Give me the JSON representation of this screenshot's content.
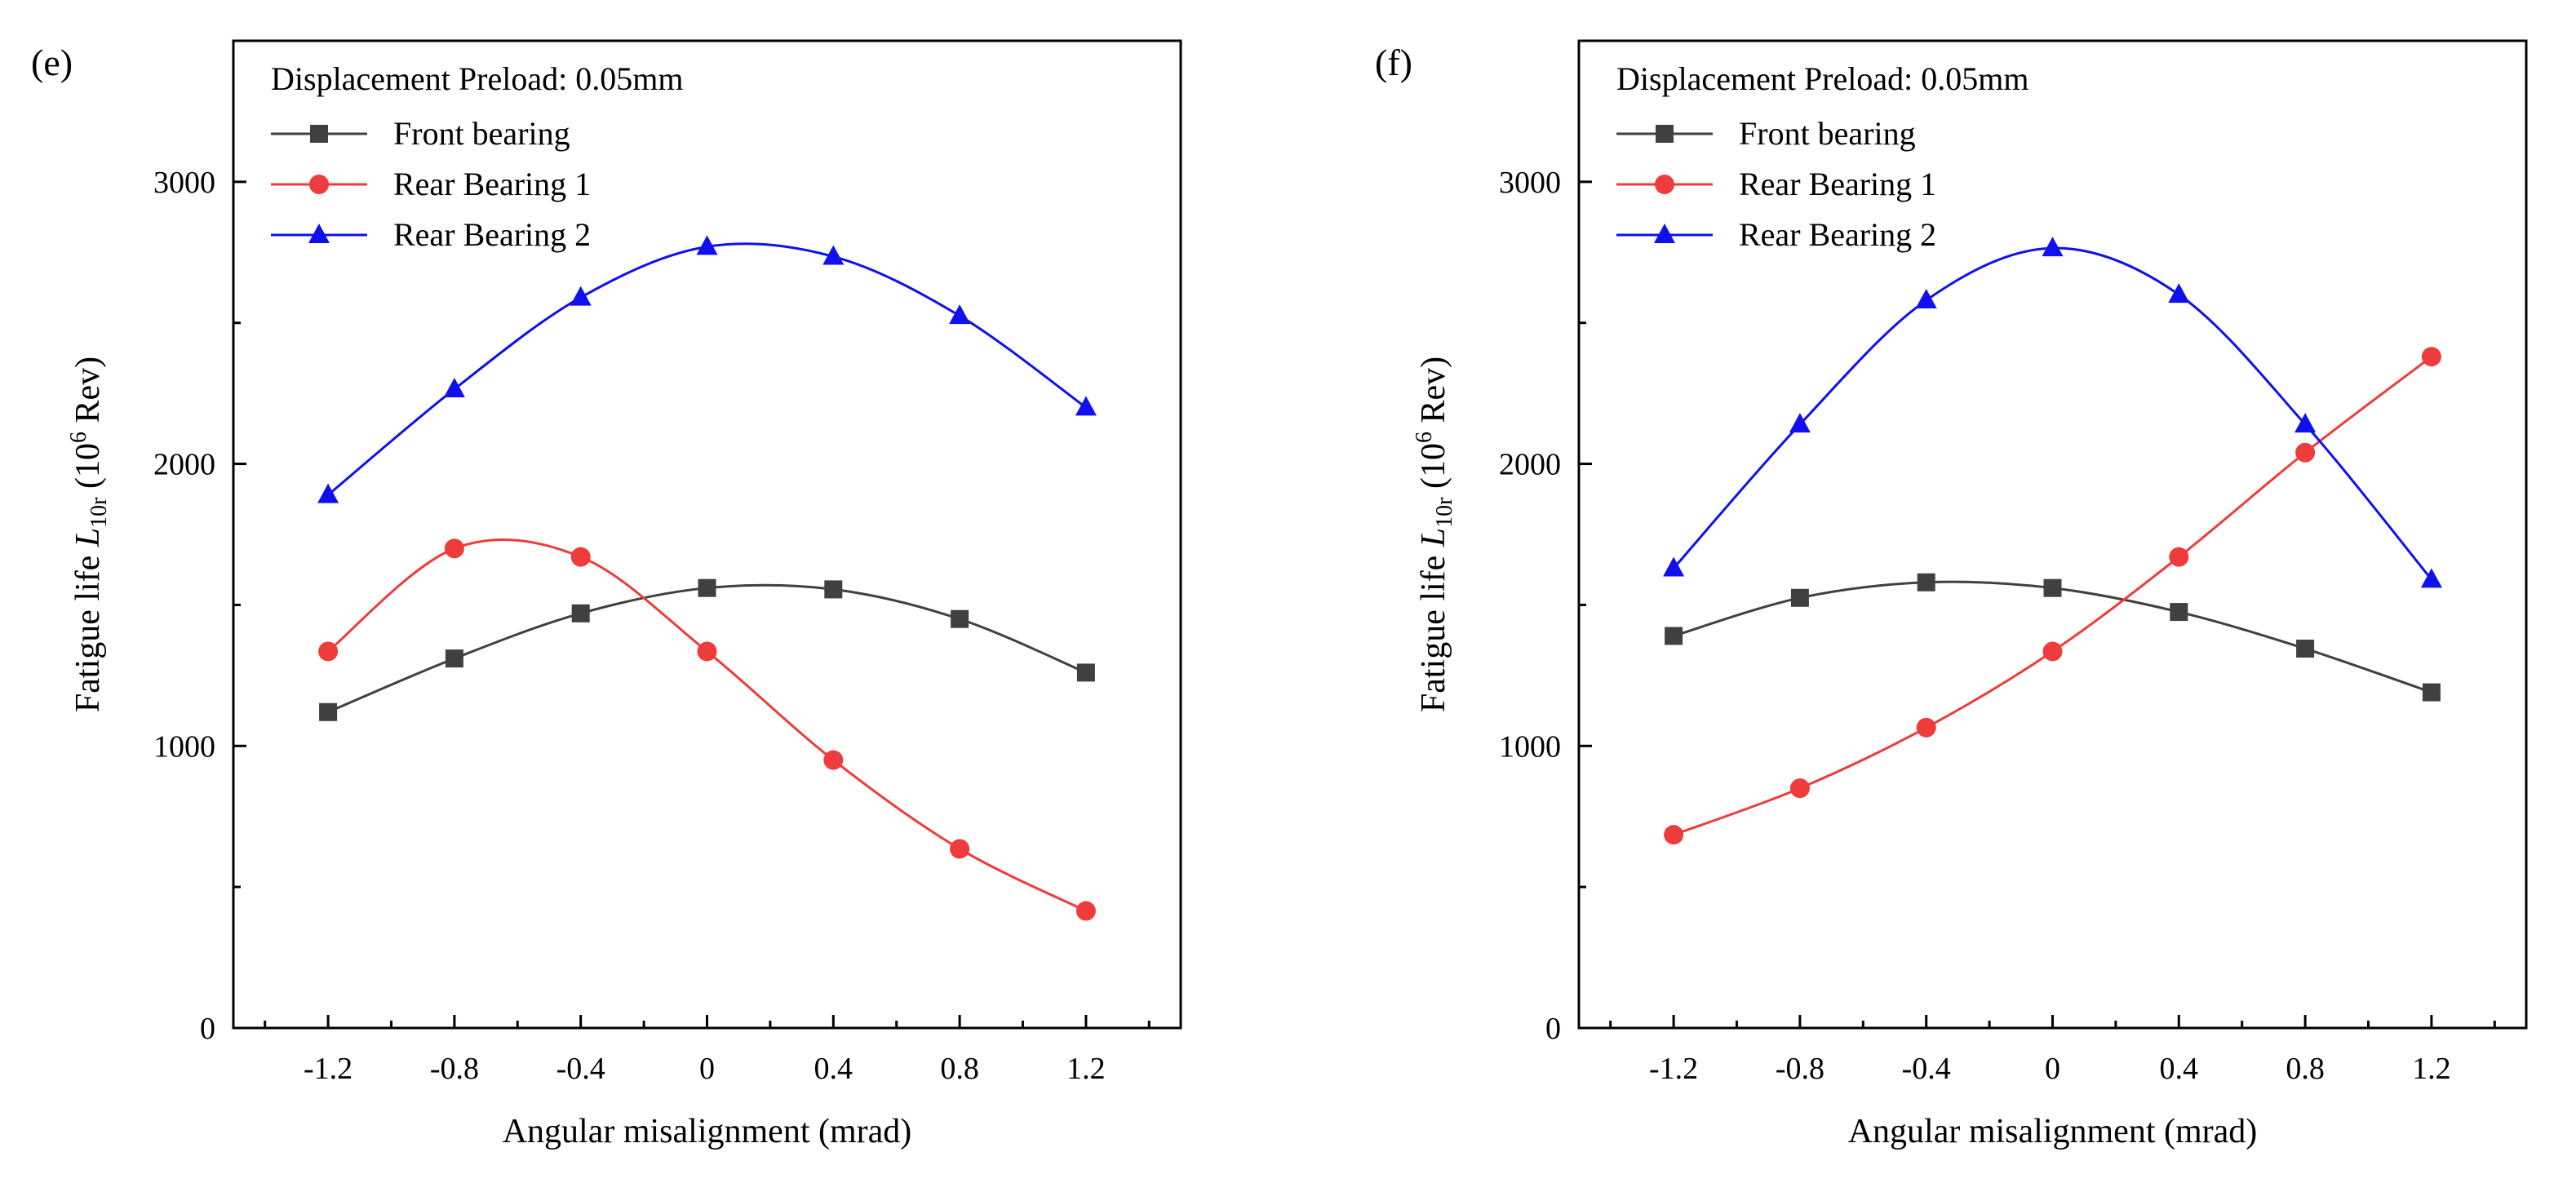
{
  "chart_data": [
    {
      "type": "line",
      "panel_label": "(e)",
      "legend_title": "Displacement Preload: 0.05mm",
      "x": [
        -1.2,
        -0.8,
        -0.4,
        0,
        0.4,
        0.8,
        1.2
      ],
      "x_tick_labels": [
        "-1.2",
        "-0.8",
        "-0.4",
        "0",
        "0.4",
        "0.8",
        "1.2"
      ],
      "y_ticks": [
        0,
        1000,
        2000,
        3000
      ],
      "xlim": [
        -1.5,
        1.5
      ],
      "ylim": [
        0,
        3500
      ],
      "xlabel": "Angular misalignment (mrad)",
      "ylabel_prefix": "Fatigue life ",
      "ylabel_var": "L",
      "ylabel_sub": "10r",
      "ylabel_mid": " (10",
      "ylabel_sup": "6",
      "ylabel_suffix": " Rev)",
      "grid": false,
      "legend_position": "top-left",
      "series": [
        {
          "name": "Front bearing",
          "color": "#404040",
          "marker": "square",
          "values": [
            1120,
            1310,
            1470,
            1560,
            1555,
            1450,
            1260
          ]
        },
        {
          "name": "Rear Bearing 1",
          "color": "#ee3b3b",
          "marker": "circle",
          "values": [
            1335,
            1700,
            1670,
            1335,
            950,
            635,
            415
          ]
        },
        {
          "name": "Rear Bearing 2",
          "color": "#1010ee",
          "marker": "triangle",
          "values": [
            1890,
            2265,
            2590,
            2770,
            2735,
            2525,
            2200
          ]
        }
      ]
    },
    {
      "type": "line",
      "panel_label": "(f)",
      "legend_title": "Displacement Preload: 0.05mm",
      "x": [
        -1.2,
        -0.8,
        -0.4,
        0,
        0.4,
        0.8,
        1.2
      ],
      "x_tick_labels": [
        "-1.2",
        "-0.8",
        "-0.4",
        "0",
        "0.4",
        "0.8",
        "1.2"
      ],
      "y_ticks": [
        0,
        1000,
        2000,
        3000
      ],
      "xlim": [
        -1.5,
        1.5
      ],
      "ylim": [
        0,
        3500
      ],
      "xlabel": "Angular misalignment (mrad)",
      "ylabel_prefix": "Fatigue life ",
      "ylabel_var": "L",
      "ylabel_sub": "10r",
      "ylabel_mid": " (10",
      "ylabel_sup": "6",
      "ylabel_suffix": " Rev)",
      "grid": false,
      "legend_position": "top-left",
      "series": [
        {
          "name": "Front bearing",
          "color": "#404040",
          "marker": "square",
          "values": [
            1390,
            1525,
            1580,
            1560,
            1475,
            1345,
            1190
          ]
        },
        {
          "name": "Rear Bearing 1",
          "color": "#ee3b3b",
          "marker": "circle",
          "values": [
            685,
            850,
            1065,
            1335,
            1670,
            2040,
            2380
          ]
        },
        {
          "name": "Rear Bearing 2",
          "color": "#1010ee",
          "marker": "triangle",
          "values": [
            1630,
            2140,
            2580,
            2765,
            2600,
            2140,
            1590
          ]
        }
      ]
    }
  ]
}
